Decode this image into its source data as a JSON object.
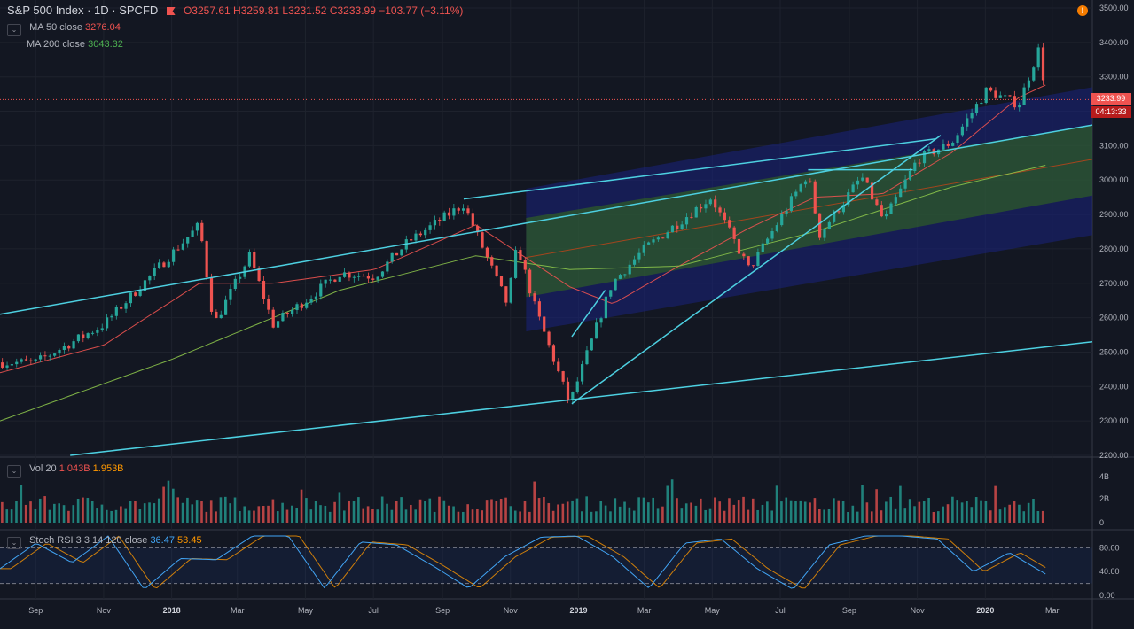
{
  "header": {
    "symbol": "S&P 500 Index · 1D · SPCFD",
    "open": "O3257.61",
    "high": "H3259.81",
    "low": "L3231.52",
    "close": "C3233.99",
    "change": "−103.77 (−3.11%)"
  },
  "indicators": {
    "ma50": {
      "label": "MA 50 close",
      "value": "3276.04"
    },
    "ma200": {
      "label": "MA 200 close",
      "value": "3043.32"
    },
    "vol": {
      "label": "Vol 20",
      "value1": "1.043B",
      "value2": "1.953B"
    },
    "stoch": {
      "label": "Stoch RSI 3 3 14 120 close",
      "k": "36.47",
      "d": "53.45"
    }
  },
  "price_label": "3233.99",
  "countdown_label": "04:13:33",
  "alert_icon": "exclamation-icon",
  "colors": {
    "bg": "#131722",
    "up": "#26a69a",
    "down": "#ef5350",
    "trend": "#4dd0e1",
    "ma50": "#ef5350",
    "ma200": "#8bc34a",
    "channel_blue": "#1a237e",
    "channel_green": "#33691e"
  },
  "chart_data": {
    "type": "line",
    "y_axis": {
      "min": 2200,
      "max": 3500,
      "ticks": [
        "3500.00",
        "3400.00",
        "3300.00",
        "3200.00",
        "3100.00",
        "3000.00",
        "2900.00",
        "2800.00",
        "2700.00",
        "2600.00",
        "2500.00",
        "2400.00",
        "2300.00",
        "2200.00"
      ]
    },
    "x_ticks": [
      "Sep",
      "Nov",
      "2018",
      "Mar",
      "May",
      "Jul",
      "Sep",
      "Nov",
      "2019",
      "Mar",
      "May",
      "Jul",
      "Sep",
      "Nov",
      "2020",
      "Mar"
    ],
    "price_series": {
      "x": [
        "2017-07-31",
        "2017-09-01",
        "2017-11-01",
        "2018-01-26",
        "2018-02-08",
        "2018-03-12",
        "2018-04-02",
        "2018-05-01",
        "2018-06-01",
        "2018-07-02",
        "2018-08-01",
        "2018-09-20",
        "2018-10-29",
        "2018-11-07",
        "2018-11-23",
        "2018-12-24",
        "2019-01-31",
        "2019-03-01",
        "2019-04-30",
        "2019-06-03",
        "2019-07-26",
        "2019-08-05",
        "2019-09-12",
        "2019-10-02",
        "2019-11-01",
        "2019-12-02",
        "2020-01-02",
        "2020-01-31",
        "2020-02-19",
        "2020-02-24"
      ],
      "close": [
        2470,
        2470,
        2580,
        2870,
        2580,
        2780,
        2580,
        2650,
        2730,
        2720,
        2820,
        2930,
        2640,
        2810,
        2630,
        2350,
        2700,
        2800,
        2950,
        2740,
        3020,
        2840,
        3010,
        2880,
        3060,
        3110,
        3260,
        3220,
        3390,
        3234
      ]
    },
    "ma50_series": {
      "x": [
        "2017-07-31",
        "2017-11-01",
        "2018-01-26",
        "2018-04-02",
        "2018-07-02",
        "2018-10-01",
        "2018-12-24",
        "2019-02-01",
        "2019-04-01",
        "2019-06-03",
        "2019-08-01",
        "2019-10-01",
        "2019-12-02",
        "2020-01-31",
        "2020-02-24"
      ],
      "value": [
        2440,
        2520,
        2700,
        2700,
        2740,
        2870,
        2690,
        2640,
        2750,
        2860,
        2950,
        2960,
        3080,
        3240,
        3276
      ]
    },
    "ma200_series": {
      "x": [
        "2017-07-31",
        "2018-01-02",
        "2018-06-01",
        "2018-10-01",
        "2018-12-24",
        "2019-04-01",
        "2019-08-01",
        "2019-12-02",
        "2020-02-24"
      ],
      "value": [
        2300,
        2480,
        2680,
        2780,
        2740,
        2750,
        2850,
        2980,
        3043
      ]
    },
    "volume": {
      "ticks": [
        "4B",
        "2B",
        "0"
      ]
    },
    "stoch_rsi": {
      "ticks": [
        "80.00",
        "40.00",
        "0.00"
      ],
      "k": [
        45,
        88,
        55,
        100,
        10,
        62,
        60,
        100,
        100,
        12,
        90,
        85,
        50,
        12,
        65,
        98,
        100,
        65,
        12,
        88,
        95,
        45,
        10,
        85,
        100,
        100,
        95,
        40,
        72,
        36
      ]
    },
    "trendlines": [
      {
        "from": [
          "2017-07-31",
          2610
        ],
        "to": [
          "2020-04-06",
          3160
        ]
      },
      {
        "from": [
          "2018-09-20",
          2945
        ],
        "to": [
          "2019-11-18",
          3120
        ]
      },
      {
        "from": [
          "2017-10-02",
          2200
        ],
        "to": [
          "2020-04-06",
          2530
        ]
      },
      {
        "from": [
          "2018-12-26",
          2350
        ],
        "to": [
          "2019-11-22",
          3130
        ]
      },
      {
        "from": [
          "2018-12-26",
          2545
        ],
        "to": [
          "2019-01-25",
          2680
        ]
      },
      {
        "from": [
          "2019-07-26",
          3030
        ],
        "to": [
          "2019-10-28",
          3030
        ]
      }
    ]
  }
}
